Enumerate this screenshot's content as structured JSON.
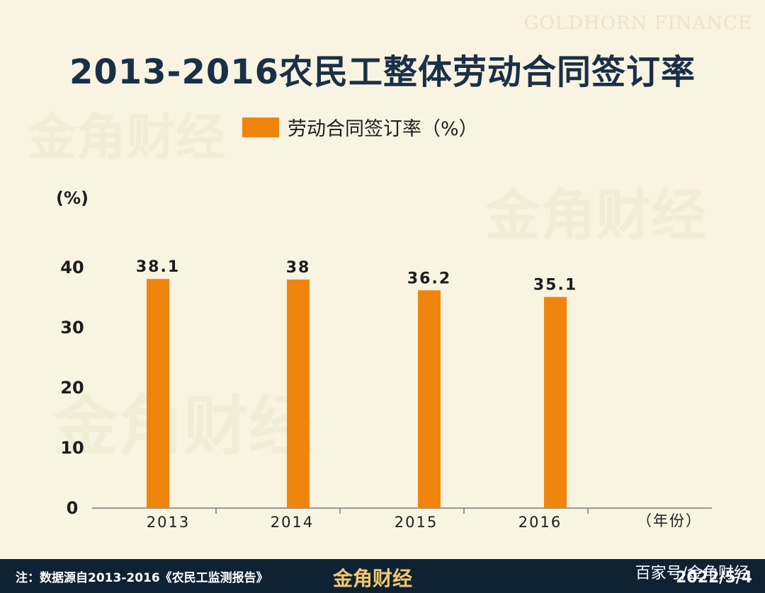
{
  "brand": {
    "english": "GOLDHORN FINANCE",
    "watermark": "金角财经"
  },
  "title": "2013-2016农民工整体劳动合同签订率",
  "legend": {
    "label": "劳动合同签订率（%）"
  },
  "colors": {
    "bar": "#f0850e",
    "title": "#1a3047",
    "footer_bg": "#0f2234",
    "background": "#f8f4e1"
  },
  "chart_data": {
    "type": "bar",
    "title": "2013-2016农民工整体劳动合同签订率",
    "categories": [
      "2013",
      "2014",
      "2015",
      "2016"
    ],
    "series": [
      {
        "name": "劳动合同签订率（%）",
        "values": [
          38.1,
          38,
          36.2,
          35.1
        ],
        "labels": [
          "38.1",
          "38",
          "36.2",
          "35.1"
        ]
      }
    ],
    "ylabel": "(%)",
    "xlabel": "（年份）",
    "ylim": [
      0,
      40
    ],
    "yticks": [
      "0",
      "10",
      "20",
      "30",
      "40"
    ],
    "grid": false,
    "legend_position": "top"
  },
  "footer": {
    "note": "注：数据源自2013-2016《农民工监测报告》",
    "brand": "金角财经",
    "source": "百家号/金角财经",
    "date": "2022/5/4"
  }
}
